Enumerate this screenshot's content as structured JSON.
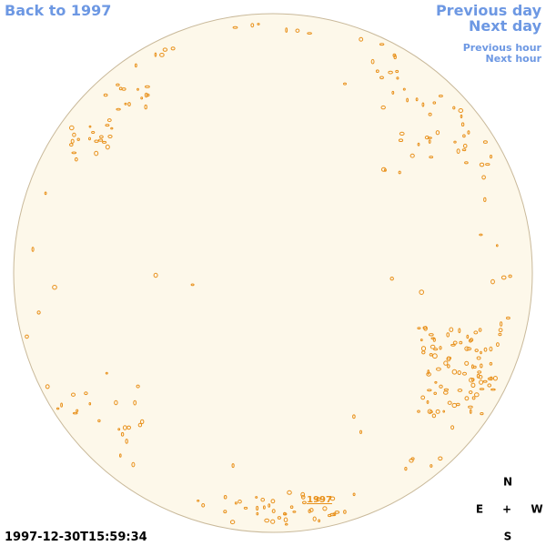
{
  "navigation": {
    "back": "Back to 1997",
    "previous_day": "Previous day",
    "next_day": "Next day",
    "previous_hour": "Previous hour",
    "next_hour": "Next hour"
  },
  "disk": {
    "year_link": "1997"
  },
  "compass": {
    "north": "N",
    "east": "E",
    "center": "+",
    "west": "W",
    "south": "S"
  },
  "timestamp": "1997-12-30T15:59:34"
}
